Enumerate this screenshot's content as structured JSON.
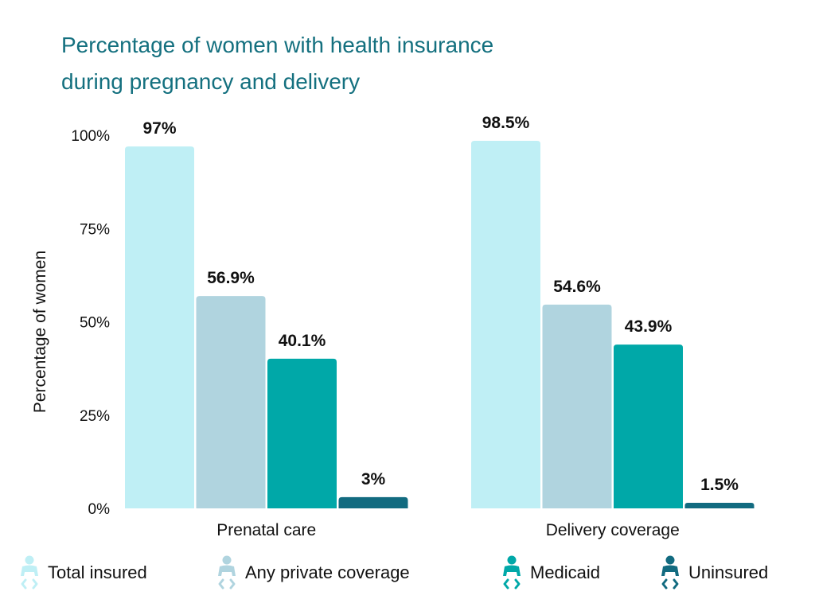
{
  "title_lines": [
    "Percentage of women with health insurance",
    "during pregnancy and delivery"
  ],
  "chart_data": {
    "type": "bar",
    "title": "Percentage of women with health insurance during pregnancy and delivery",
    "xlabel": "",
    "ylabel": "Percentage of women",
    "ylim": [
      0,
      100
    ],
    "yticks": [
      0,
      25,
      50,
      75,
      100
    ],
    "ytick_labels": [
      "0%",
      "25%",
      "50%",
      "75%",
      "100%"
    ],
    "categories": [
      "Prenatal care",
      "Delivery coverage"
    ],
    "series": [
      {
        "name": "Total insured",
        "color": "#bfeff5",
        "values": [
          97,
          98.5
        ],
        "labels": [
          "97%",
          "98.5%"
        ]
      },
      {
        "name": "Any private coverage",
        "color": "#b0d4df",
        "values": [
          56.9,
          54.6
        ],
        "labels": [
          "56.9%",
          "54.6%"
        ]
      },
      {
        "name": "Medicaid",
        "color": "#00a8a8",
        "values": [
          40.1,
          43.9
        ],
        "labels": [
          "40.1%",
          "43.9%"
        ]
      },
      {
        "name": "Uninsured",
        "color": "#126b80",
        "values": [
          3,
          1.5
        ],
        "labels": [
          "3%",
          "1.5%"
        ]
      }
    ],
    "grid": false,
    "legend_position": "bottom",
    "legend_icon": "baby-icon"
  }
}
